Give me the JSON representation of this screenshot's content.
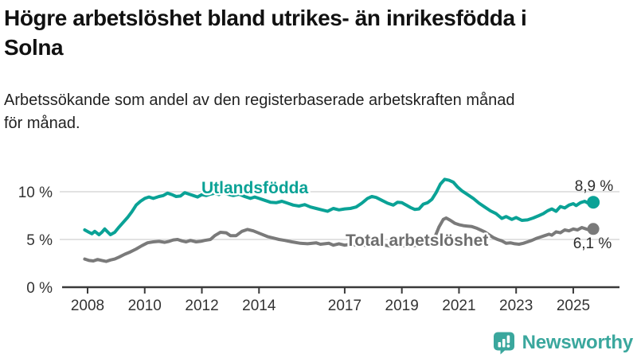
{
  "title": {
    "line1": "Högre arbetslöshet bland utrikes- än inrikesfödda i",
    "line2": "Solna"
  },
  "subtitle": {
    "line1": "Arbetssökande som andel av den registerbaserade arbetskraften månad",
    "line2": "för månad."
  },
  "branding": {
    "name": "Newsworthy",
    "icon": "newsworthy-speech-bubble-bar-chart",
    "color": "#3aa79d"
  },
  "chart_data": {
    "type": "line",
    "title": "Högre arbetslöshet bland utrikes- än inrikesfödda i Solna",
    "subtitle": "Arbetssökande som andel av den registerbaserade arbetskraften månad för månad.",
    "grid": "horizontal",
    "legend_position": "inline-labels",
    "x_range": [
      2007.9,
      2025.7
    ],
    "ylim": [
      0,
      12
    ],
    "y_ticks": [
      {
        "label": "0 %",
        "value": 0
      },
      {
        "label": "5 %",
        "value": 5
      },
      {
        "label": "10 %",
        "value": 10
      }
    ],
    "x_ticks": [
      {
        "label": "2008",
        "year": 2008
      },
      {
        "label": "2010",
        "year": 2010
      },
      {
        "label": "2012",
        "year": 2012
      },
      {
        "label": "2014",
        "year": 2014
      },
      {
        "label": "2017",
        "year": 2017
      },
      {
        "label": "2019",
        "year": 2019
      },
      {
        "label": "2021",
        "year": 2021
      },
      {
        "label": "2023",
        "year": 2023
      },
      {
        "label": "2025",
        "year": 2025
      }
    ],
    "series": [
      {
        "name": "Utlandsfödda",
        "color": "#0aa296",
        "end_label": "8,9 %",
        "end_value": 8.9,
        "points": [
          [
            2007.9,
            6.0
          ],
          [
            2008.05,
            5.75
          ],
          [
            2008.15,
            5.6
          ],
          [
            2008.25,
            5.85
          ],
          [
            2008.4,
            5.5
          ],
          [
            2008.5,
            5.75
          ],
          [
            2008.6,
            6.1
          ],
          [
            2008.7,
            5.8
          ],
          [
            2008.8,
            5.5
          ],
          [
            2008.95,
            5.75
          ],
          [
            2009.1,
            6.3
          ],
          [
            2009.25,
            6.8
          ],
          [
            2009.4,
            7.3
          ],
          [
            2009.55,
            7.9
          ],
          [
            2009.7,
            8.6
          ],
          [
            2009.85,
            9.0
          ],
          [
            2010.0,
            9.3
          ],
          [
            2010.15,
            9.45
          ],
          [
            2010.3,
            9.3
          ],
          [
            2010.5,
            9.5
          ],
          [
            2010.65,
            9.6
          ],
          [
            2010.8,
            9.85
          ],
          [
            2010.95,
            9.7
          ],
          [
            2011.1,
            9.5
          ],
          [
            2011.25,
            9.55
          ],
          [
            2011.4,
            9.9
          ],
          [
            2011.55,
            9.75
          ],
          [
            2011.7,
            9.6
          ],
          [
            2011.85,
            9.45
          ],
          [
            2012.0,
            9.7
          ],
          [
            2012.15,
            9.6
          ],
          [
            2012.3,
            9.75
          ],
          [
            2012.45,
            9.85
          ],
          [
            2012.6,
            9.7
          ],
          [
            2012.75,
            9.9
          ],
          [
            2012.9,
            9.75
          ],
          [
            2013.1,
            9.6
          ],
          [
            2013.3,
            9.75
          ],
          [
            2013.5,
            9.5
          ],
          [
            2013.7,
            9.3
          ],
          [
            2013.85,
            9.45
          ],
          [
            2014.0,
            9.3
          ],
          [
            2014.2,
            9.1
          ],
          [
            2014.4,
            8.9
          ],
          [
            2014.6,
            8.85
          ],
          [
            2014.8,
            9.0
          ],
          [
            2015.0,
            8.8
          ],
          [
            2015.2,
            8.6
          ],
          [
            2015.4,
            8.5
          ],
          [
            2015.6,
            8.65
          ],
          [
            2015.8,
            8.4
          ],
          [
            2016.0,
            8.25
          ],
          [
            2016.2,
            8.1
          ],
          [
            2016.4,
            7.95
          ],
          [
            2016.6,
            8.25
          ],
          [
            2016.8,
            8.1
          ],
          [
            2017.0,
            8.2
          ],
          [
            2017.2,
            8.25
          ],
          [
            2017.4,
            8.4
          ],
          [
            2017.6,
            8.8
          ],
          [
            2017.8,
            9.3
          ],
          [
            2017.95,
            9.5
          ],
          [
            2018.1,
            9.4
          ],
          [
            2018.3,
            9.1
          ],
          [
            2018.5,
            8.8
          ],
          [
            2018.7,
            8.6
          ],
          [
            2018.85,
            8.9
          ],
          [
            2019.0,
            8.85
          ],
          [
            2019.15,
            8.6
          ],
          [
            2019.3,
            8.35
          ],
          [
            2019.45,
            8.15
          ],
          [
            2019.6,
            8.2
          ],
          [
            2019.75,
            8.7
          ],
          [
            2019.9,
            8.85
          ],
          [
            2020.05,
            9.2
          ],
          [
            2020.2,
            9.9
          ],
          [
            2020.35,
            10.8
          ],
          [
            2020.5,
            11.3
          ],
          [
            2020.65,
            11.2
          ],
          [
            2020.8,
            11.0
          ],
          [
            2020.95,
            10.5
          ],
          [
            2021.1,
            10.1
          ],
          [
            2021.3,
            9.7
          ],
          [
            2021.5,
            9.3
          ],
          [
            2021.7,
            8.8
          ],
          [
            2021.9,
            8.4
          ],
          [
            2022.1,
            8.0
          ],
          [
            2022.3,
            7.7
          ],
          [
            2022.5,
            7.2
          ],
          [
            2022.65,
            7.4
          ],
          [
            2022.85,
            7.1
          ],
          [
            2023.0,
            7.3
          ],
          [
            2023.2,
            7.0
          ],
          [
            2023.4,
            7.05
          ],
          [
            2023.6,
            7.25
          ],
          [
            2023.8,
            7.5
          ],
          [
            2023.95,
            7.7
          ],
          [
            2024.1,
            8.0
          ],
          [
            2024.25,
            8.2
          ],
          [
            2024.4,
            7.95
          ],
          [
            2024.55,
            8.45
          ],
          [
            2024.7,
            8.3
          ],
          [
            2024.85,
            8.6
          ],
          [
            2025.0,
            8.75
          ],
          [
            2025.1,
            8.55
          ],
          [
            2025.25,
            8.85
          ],
          [
            2025.4,
            9.0
          ],
          [
            2025.55,
            8.75
          ],
          [
            2025.7,
            8.9
          ]
        ]
      },
      {
        "name": "Total arbetslöshet",
        "color": "#7a7a7a",
        "end_label": "6,1 %",
        "end_value": 6.1,
        "points": [
          [
            2007.9,
            2.95
          ],
          [
            2008.05,
            2.8
          ],
          [
            2008.2,
            2.75
          ],
          [
            2008.35,
            2.9
          ],
          [
            2008.5,
            2.8
          ],
          [
            2008.65,
            2.7
          ],
          [
            2008.8,
            2.85
          ],
          [
            2008.95,
            2.95
          ],
          [
            2009.1,
            3.15
          ],
          [
            2009.3,
            3.45
          ],
          [
            2009.5,
            3.7
          ],
          [
            2009.7,
            4.0
          ],
          [
            2009.9,
            4.35
          ],
          [
            2010.1,
            4.65
          ],
          [
            2010.3,
            4.75
          ],
          [
            2010.5,
            4.8
          ],
          [
            2010.7,
            4.7
          ],
          [
            2010.85,
            4.8
          ],
          [
            2011.0,
            4.95
          ],
          [
            2011.15,
            5.0
          ],
          [
            2011.3,
            4.85
          ],
          [
            2011.45,
            4.75
          ],
          [
            2011.6,
            4.9
          ],
          [
            2011.8,
            4.75
          ],
          [
            2011.95,
            4.8
          ],
          [
            2012.1,
            4.9
          ],
          [
            2012.3,
            5.0
          ],
          [
            2012.45,
            5.4
          ],
          [
            2012.65,
            5.75
          ],
          [
            2012.85,
            5.7
          ],
          [
            2013.0,
            5.4
          ],
          [
            2013.2,
            5.4
          ],
          [
            2013.4,
            5.85
          ],
          [
            2013.6,
            6.05
          ],
          [
            2013.8,
            5.9
          ],
          [
            2014.05,
            5.6
          ],
          [
            2014.3,
            5.3
          ],
          [
            2014.5,
            5.15
          ],
          [
            2014.7,
            5.0
          ],
          [
            2014.9,
            4.9
          ],
          [
            2015.15,
            4.75
          ],
          [
            2015.45,
            4.6
          ],
          [
            2015.7,
            4.55
          ],
          [
            2016.0,
            4.65
          ],
          [
            2016.15,
            4.5
          ],
          [
            2016.45,
            4.6
          ],
          [
            2016.6,
            4.4
          ],
          [
            2016.8,
            4.55
          ],
          [
            2017.0,
            4.4
          ],
          [
            2017.2,
            4.5
          ],
          [
            2017.4,
            4.4
          ],
          [
            2017.6,
            4.45
          ],
          [
            2017.8,
            4.35
          ],
          [
            2018.0,
            4.45
          ],
          [
            2018.2,
            4.35
          ],
          [
            2018.4,
            4.4
          ],
          [
            2018.6,
            4.3
          ],
          [
            2018.8,
            4.4
          ],
          [
            2019.0,
            4.35
          ],
          [
            2019.2,
            4.3
          ],
          [
            2019.4,
            4.35
          ],
          [
            2019.6,
            4.4
          ],
          [
            2019.8,
            4.5
          ],
          [
            2020.0,
            4.6
          ],
          [
            2020.15,
            5.2
          ],
          [
            2020.3,
            6.3
          ],
          [
            2020.45,
            7.1
          ],
          [
            2020.55,
            7.25
          ],
          [
            2020.7,
            7.0
          ],
          [
            2020.85,
            6.7
          ],
          [
            2021.0,
            6.55
          ],
          [
            2021.15,
            6.45
          ],
          [
            2021.3,
            6.4
          ],
          [
            2021.45,
            6.35
          ],
          [
            2021.6,
            6.2
          ],
          [
            2021.75,
            6.0
          ],
          [
            2021.9,
            5.8
          ],
          [
            2022.05,
            5.5
          ],
          [
            2022.2,
            5.2
          ],
          [
            2022.35,
            5.0
          ],
          [
            2022.5,
            4.85
          ],
          [
            2022.65,
            4.6
          ],
          [
            2022.8,
            4.65
          ],
          [
            2022.95,
            4.55
          ],
          [
            2023.1,
            4.5
          ],
          [
            2023.25,
            4.6
          ],
          [
            2023.4,
            4.75
          ],
          [
            2023.55,
            4.9
          ],
          [
            2023.7,
            5.1
          ],
          [
            2023.85,
            5.25
          ],
          [
            2024.0,
            5.4
          ],
          [
            2024.15,
            5.55
          ],
          [
            2024.25,
            5.45
          ],
          [
            2024.4,
            5.8
          ],
          [
            2024.55,
            5.7
          ],
          [
            2024.7,
            6.0
          ],
          [
            2024.85,
            5.9
          ],
          [
            2025.0,
            6.1
          ],
          [
            2025.15,
            6.0
          ],
          [
            2025.3,
            6.25
          ],
          [
            2025.45,
            6.1
          ],
          [
            2025.55,
            6.0
          ],
          [
            2025.7,
            6.1
          ]
        ]
      }
    ]
  }
}
